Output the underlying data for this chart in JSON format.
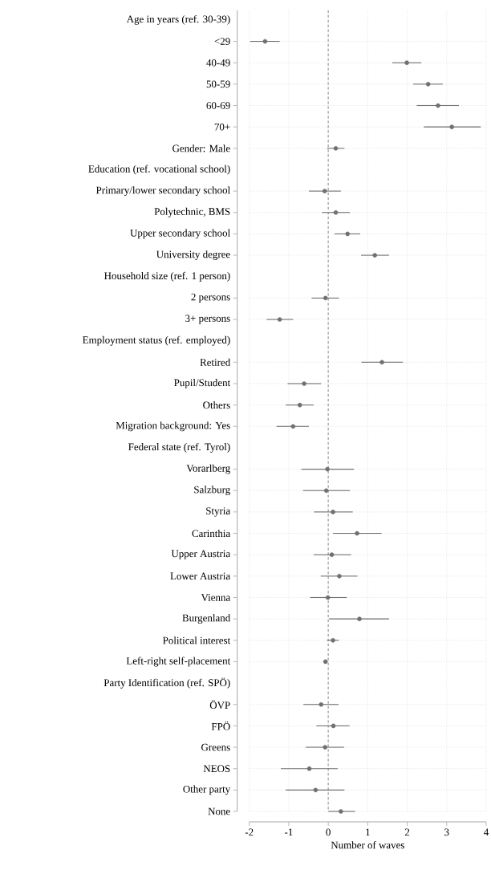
{
  "chart_data": {
    "type": "scatter",
    "orientation": "horizontal",
    "xlabel": "Number of waves",
    "categories": [
      "Age in years (ref. 30-39)",
      "<29",
      "40-49",
      "50-59",
      "60-69",
      "70+",
      "Gender: Male",
      "Education (ref. vocational school)",
      "Primary/lower secondary school",
      "Polytechnic, BMS",
      "Upper secondary school",
      "University degree",
      "Household size (ref. 1 person)",
      "2 persons",
      "3+ persons",
      "Employment status (ref. employed)",
      "Retired",
      "Pupil/Student",
      "Others",
      "Migration background: Yes",
      "Federal state (ref. Tyrol)",
      "Vorarlberg",
      "Salzburg",
      "Styria",
      "Carinthia",
      "Upper Austria",
      "Lower Austria",
      "Vienna",
      "Burgenland",
      "Political interest",
      "Left-right self-placement",
      "Party Identification (ref. SPÖ)",
      "ÖVP",
      "FPÖ",
      "Greens",
      "NEOS",
      "Other party",
      "None"
    ],
    "values": [
      null,
      -1.6,
      1.99,
      2.53,
      2.78,
      3.13,
      0.19,
      null,
      -0.09,
      0.19,
      0.49,
      1.18,
      null,
      -0.07,
      -1.23,
      null,
      1.36,
      -0.61,
      -0.72,
      -0.89,
      null,
      -0.02,
      -0.05,
      0.12,
      0.73,
      0.09,
      0.28,
      -0.01,
      0.79,
      0.12,
      -0.07,
      null,
      -0.18,
      0.13,
      -0.08,
      -0.48,
      -0.32,
      0.32
    ],
    "errors": [
      null,
      [
        -1.98,
        -1.23
      ],
      [
        1.62,
        2.36
      ],
      [
        2.15,
        2.9
      ],
      [
        2.24,
        3.31
      ],
      [
        2.42,
        3.86
      ],
      [
        -0.03,
        0.41
      ],
      null,
      [
        -0.49,
        0.32
      ],
      [
        -0.16,
        0.55
      ],
      [
        0.16,
        0.81
      ],
      [
        0.83,
        1.54
      ],
      null,
      [
        -0.42,
        0.27
      ],
      [
        -1.56,
        -0.89
      ],
      null,
      [
        0.84,
        1.89
      ],
      [
        -1.03,
        -0.18
      ],
      [
        -1.08,
        -0.37
      ],
      [
        -1.31,
        -0.49
      ],
      null,
      [
        -0.68,
        0.65
      ],
      [
        -0.64,
        0.55
      ],
      [
        -0.36,
        0.62
      ],
      [
        0.12,
        1.35
      ],
      [
        -0.37,
        0.58
      ],
      [
        -0.19,
        0.74
      ],
      [
        -0.46,
        0.47
      ],
      [
        0.02,
        1.54
      ],
      [
        -0.03,
        0.27
      ],
      [
        -0.1,
        -0.03
      ],
      null,
      [
        -0.63,
        0.26
      ],
      [
        -0.3,
        0.54
      ],
      [
        -0.57,
        0.4
      ],
      [
        -1.2,
        0.24
      ],
      [
        -1.08,
        0.41
      ],
      [
        0.0,
        0.68
      ]
    ],
    "color": "#707070",
    "grid": true,
    "xlim": [
      -2,
      4
    ],
    "xticks": [
      -2,
      -1,
      0,
      1,
      2,
      3,
      4
    ],
    "ref_lines": [
      {
        "axis": "x",
        "value": 0,
        "color": "#999999",
        "line_style": "dashed"
      }
    ]
  }
}
